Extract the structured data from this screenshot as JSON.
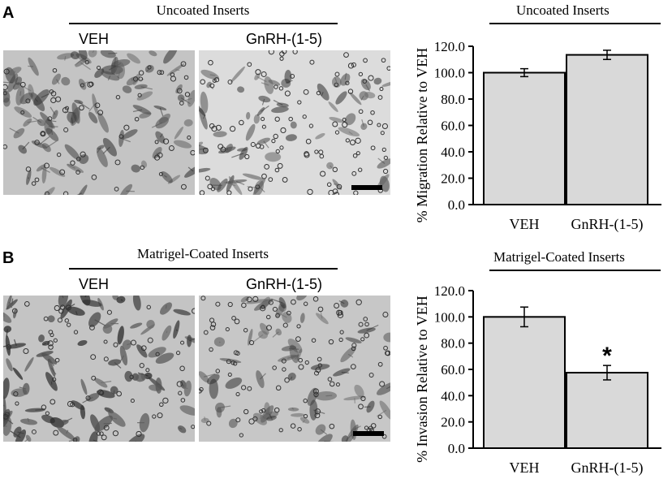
{
  "panels": [
    {
      "letter": "A",
      "image_title": "Uncoated Inserts",
      "image_labels": [
        "VEH",
        "GnRH-(1-5)"
      ],
      "chart_title": "Uncoated Inserts"
    },
    {
      "letter": "B",
      "image_title": "Matrigel-Coated Inserts",
      "image_labels": [
        "VEH",
        "GnRH-(1-5)"
      ],
      "chart_title": "Matrigel-Coated Inserts"
    }
  ],
  "colors": {
    "bar_fill": "#d9d9d9",
    "bar_stroke": "#000000",
    "axis": "#000000",
    "scale_bar": "#000000"
  },
  "chart_data": [
    {
      "type": "bar",
      "title": "Uncoated Inserts",
      "categories": [
        "VEH",
        "GnRH-(1-5)"
      ],
      "values": [
        100.0,
        113.5
      ],
      "errors": [
        3.0,
        3.5
      ],
      "significance": [
        "",
        ""
      ],
      "ylabel": "% Migration Relative to VEH",
      "xlabel": "",
      "ylim": [
        0,
        120
      ],
      "yticks": [
        "0.0",
        "20.0",
        "40.0",
        "60.0",
        "80.0",
        "100.0",
        "120.0"
      ],
      "grid": false
    },
    {
      "type": "bar",
      "title": "Matrigel-Coated Inserts",
      "categories": [
        "VEH",
        "GnRH-(1-5)"
      ],
      "values": [
        100.0,
        57.5
      ],
      "errors": [
        7.5,
        5.5
      ],
      "significance": [
        "",
        "*"
      ],
      "ylabel": "% Invasion Relative to VEH",
      "xlabel": "",
      "ylim": [
        0,
        120
      ],
      "yticks": [
        "0.0",
        "20.0",
        "40.0",
        "60.0",
        "80.0",
        "100.0",
        "120.0"
      ],
      "grid": false
    }
  ]
}
